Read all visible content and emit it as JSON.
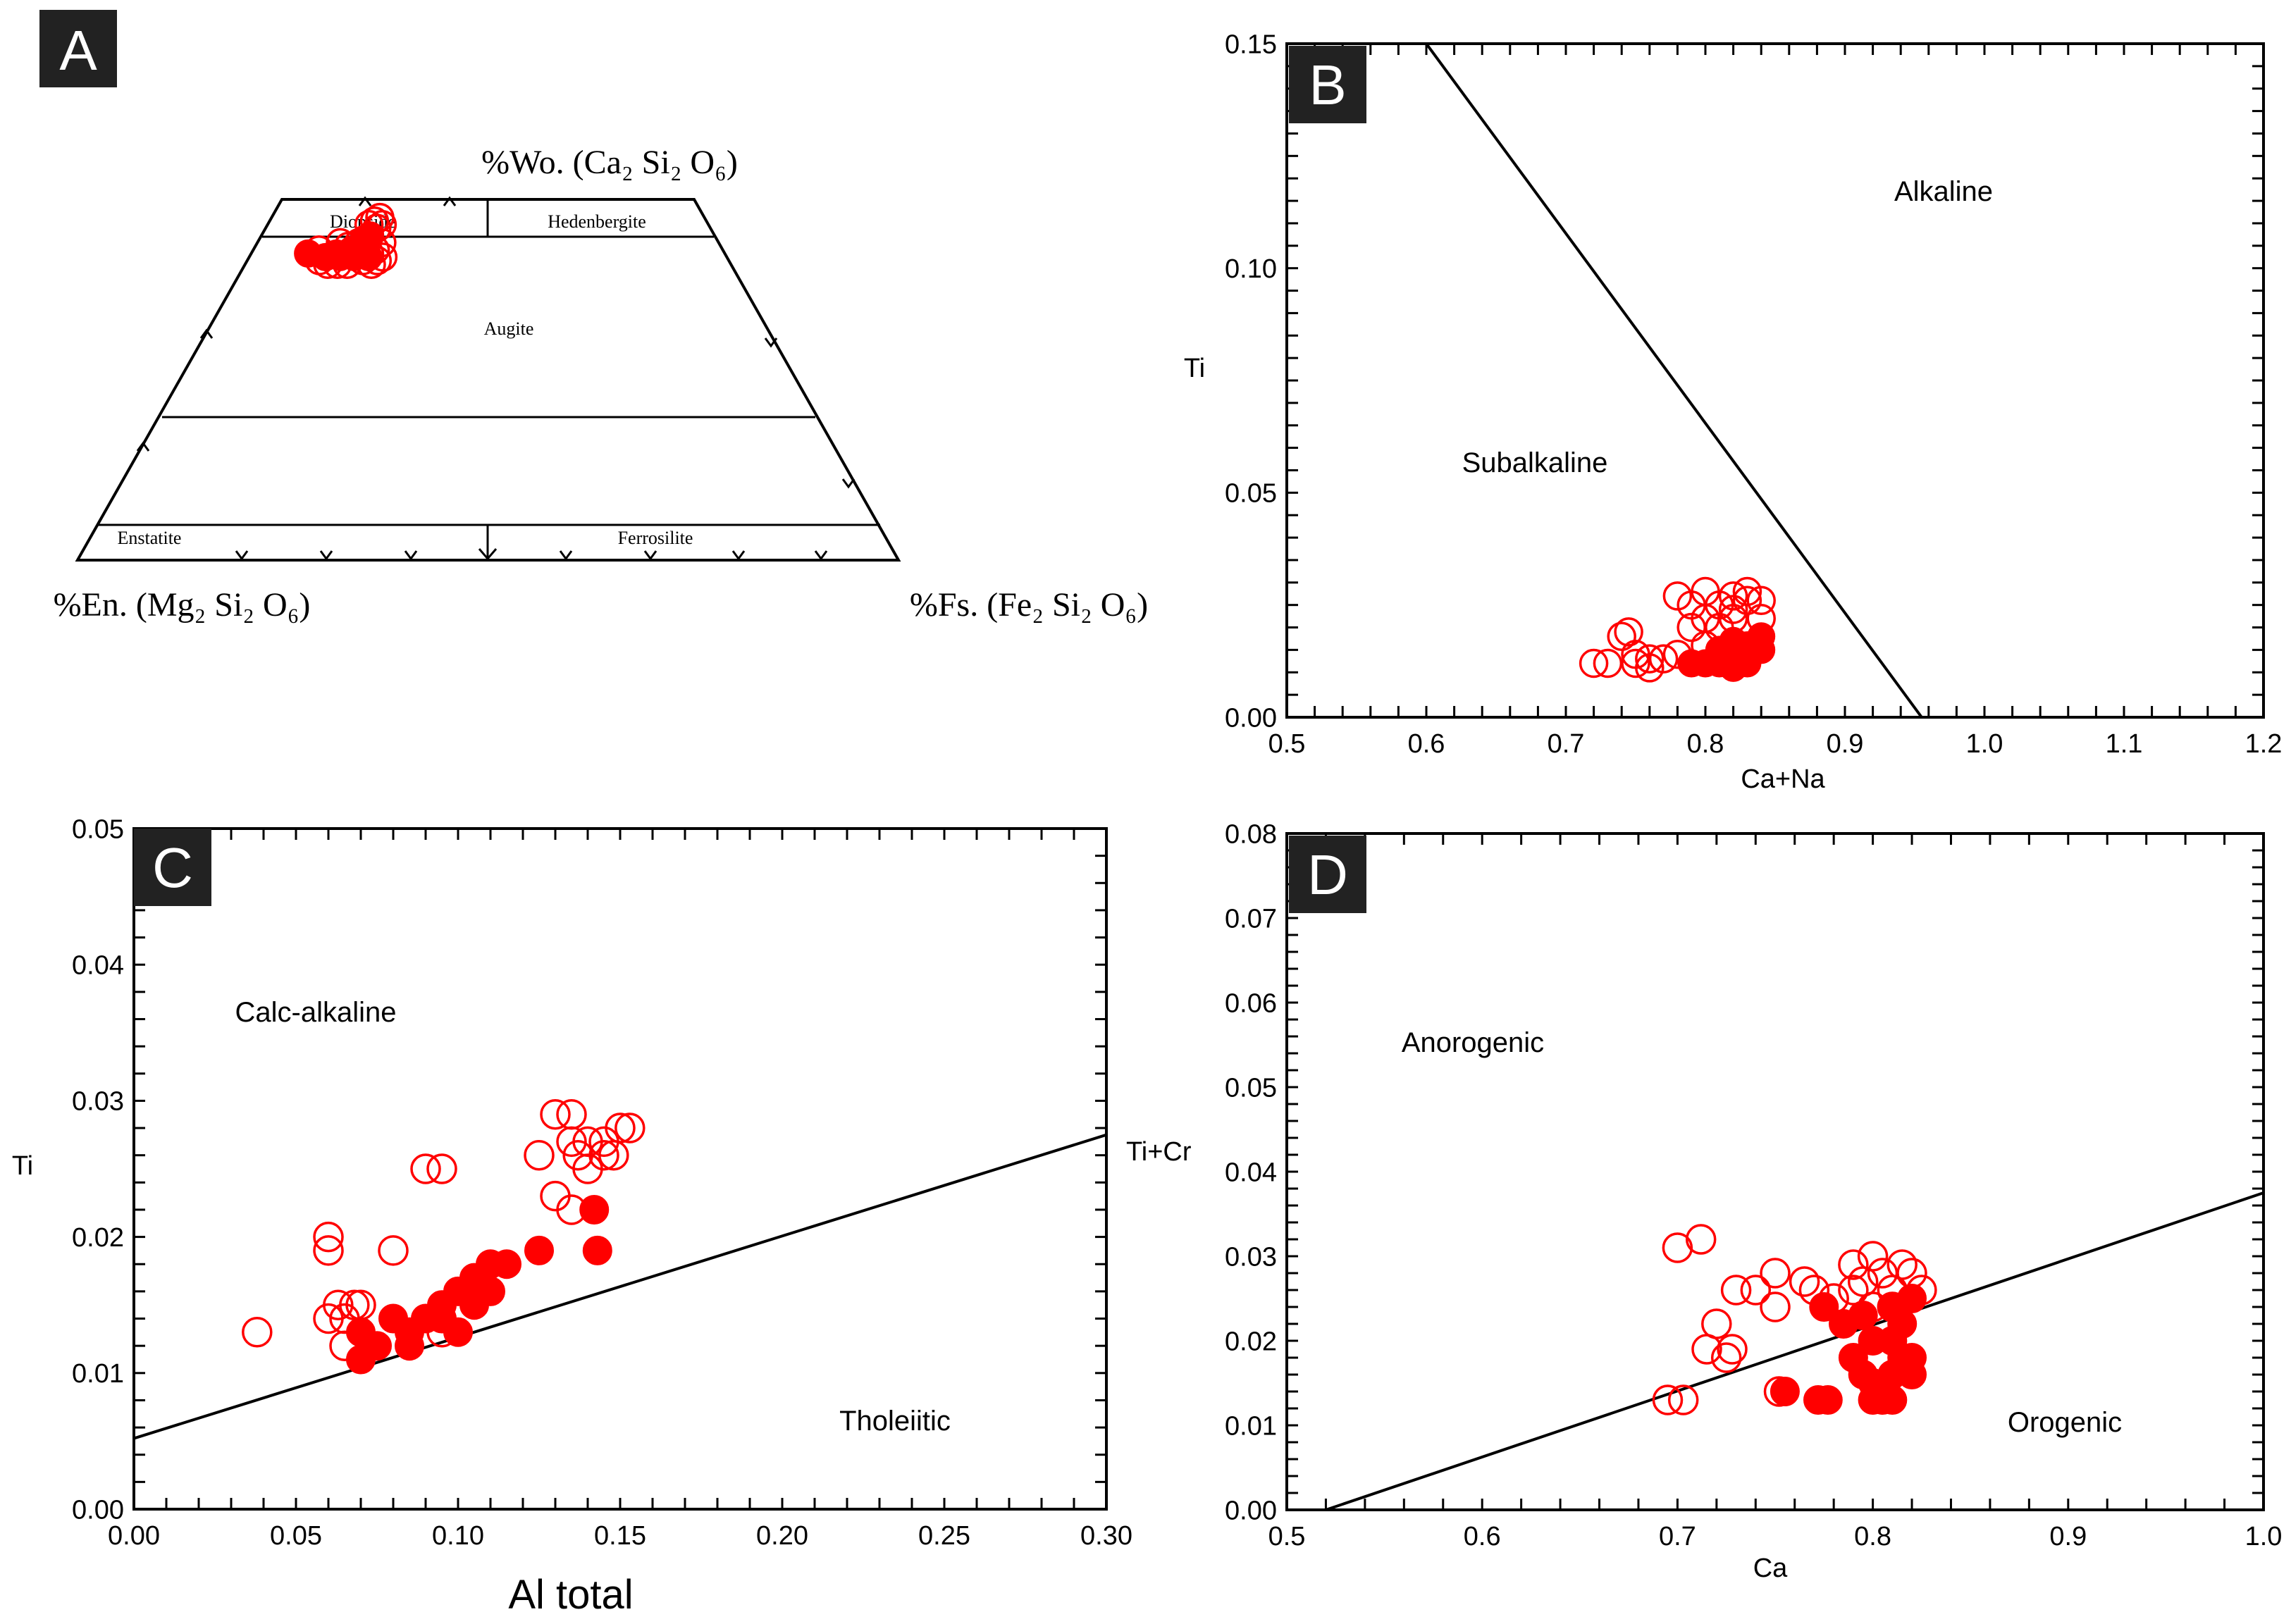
{
  "figure": {
    "marker_color": "#ff0000",
    "line_color": "#000000",
    "panel_label_bg": "#222222"
  },
  "chart_data": [
    {
      "id": "A",
      "type": "scatter",
      "title": "A",
      "diagram": "pyroxene quadrilateral (Wo-En-Fs)",
      "apex_labels": {
        "top": "%Wo. (Ca₂ Si₂ O₆)",
        "bottom_left": "%En. (Mg₂ Si₂ O₆)",
        "bottom_right": "%Fs. (Fe₂ Si₂ O₆)"
      },
      "fields": [
        "Diopside",
        "Hedenbergite",
        "Augite",
        "Enstatite",
        "Ferrosilite"
      ],
      "axes": {
        "x": "Fs fraction of En+Fs (0-100)",
        "y": "Wo (0-50)"
      },
      "filled": [
        [
          12,
          42.5
        ],
        [
          16,
          42
        ],
        [
          18,
          42.5
        ],
        [
          21,
          43
        ],
        [
          23,
          44.5
        ],
        [
          24,
          45
        ],
        [
          22,
          42
        ],
        [
          19,
          42
        ],
        [
          25,
          42
        ]
      ],
      "open": [
        [
          14,
          43
        ],
        [
          15,
          41.5
        ],
        [
          17,
          41
        ],
        [
          19,
          41
        ],
        [
          21,
          41
        ],
        [
          22,
          44
        ],
        [
          23,
          46.5
        ],
        [
          24,
          47
        ],
        [
          25,
          46
        ],
        [
          25,
          47.5
        ],
        [
          26,
          46.5
        ],
        [
          23,
          43
        ],
        [
          25,
          42.5
        ],
        [
          26,
          43
        ],
        [
          27,
          44
        ],
        [
          24,
          41.5
        ],
        [
          26,
          41
        ],
        [
          27,
          41.5
        ],
        [
          20,
          43.5
        ],
        [
          28,
          42
        ],
        [
          18,
          44
        ]
      ]
    },
    {
      "id": "B",
      "type": "scatter",
      "title": "B",
      "xlabel": "Ca+Na",
      "ylabel": "Ti",
      "xlim": [
        0.5,
        1.2
      ],
      "ylim": [
        0.0,
        0.15
      ],
      "xticks": [
        "0.5",
        "0.6",
        "0.7",
        "0.8",
        "0.9",
        "1.0",
        "1.1",
        "1.2"
      ],
      "yticks": [
        "0.00",
        "0.05",
        "0.10",
        "0.15"
      ],
      "fields": [
        "Subalkaline",
        "Alkaline"
      ],
      "boundary": [
        [
          0.6,
          0.15
        ],
        [
          0.955,
          0.0
        ]
      ],
      "filled": [
        [
          0.79,
          0.012
        ],
        [
          0.8,
          0.012
        ],
        [
          0.81,
          0.012
        ],
        [
          0.82,
          0.011
        ],
        [
          0.83,
          0.013
        ],
        [
          0.84,
          0.015
        ],
        [
          0.84,
          0.018
        ],
        [
          0.83,
          0.016
        ],
        [
          0.82,
          0.017
        ],
        [
          0.81,
          0.015
        ],
        [
          0.83,
          0.012
        ],
        [
          0.82,
          0.014
        ]
      ],
      "open": [
        [
          0.72,
          0.012
        ],
        [
          0.73,
          0.012
        ],
        [
          0.74,
          0.018
        ],
        [
          0.745,
          0.019
        ],
        [
          0.75,
          0.012
        ],
        [
          0.76,
          0.013
        ],
        [
          0.77,
          0.013
        ],
        [
          0.78,
          0.014
        ],
        [
          0.78,
          0.027
        ],
        [
          0.79,
          0.025
        ],
        [
          0.8,
          0.022
        ],
        [
          0.8,
          0.028
        ],
        [
          0.81,
          0.025
        ],
        [
          0.82,
          0.027
        ],
        [
          0.82,
          0.024
        ],
        [
          0.83,
          0.028
        ],
        [
          0.83,
          0.026
        ],
        [
          0.84,
          0.026
        ],
        [
          0.81,
          0.02
        ],
        [
          0.75,
          0.014
        ],
        [
          0.76,
          0.011
        ],
        [
          0.79,
          0.02
        ],
        [
          0.82,
          0.022
        ],
        [
          0.84,
          0.022
        ],
        [
          0.8,
          0.016
        ]
      ]
    },
    {
      "id": "C",
      "type": "scatter",
      "title": "C",
      "xlabel": "Al total",
      "ylabel": "Ti",
      "xlim": [
        0.0,
        0.3
      ],
      "ylim": [
        0.0,
        0.05
      ],
      "xticks": [
        "0.00",
        "0.05",
        "0.10",
        "0.15",
        "0.20",
        "0.25",
        "0.30"
      ],
      "yticks": [
        "0.00",
        "0.01",
        "0.02",
        "0.03",
        "0.04",
        "0.05"
      ],
      "fields": [
        "Calc-alkaline",
        "Tholeiitic"
      ],
      "line_label": "Ti+Cr",
      "boundary": [
        [
          0.0,
          0.0052
        ],
        [
          0.3,
          0.0275
        ]
      ],
      "filled": [
        [
          0.07,
          0.011
        ],
        [
          0.07,
          0.013
        ],
        [
          0.075,
          0.012
        ],
        [
          0.08,
          0.014
        ],
        [
          0.085,
          0.013
        ],
        [
          0.085,
          0.012
        ],
        [
          0.09,
          0.014
        ],
        [
          0.095,
          0.014
        ],
        [
          0.1,
          0.016
        ],
        [
          0.105,
          0.017
        ],
        [
          0.105,
          0.015
        ],
        [
          0.11,
          0.016
        ],
        [
          0.11,
          0.018
        ],
        [
          0.115,
          0.018
        ],
        [
          0.125,
          0.019
        ],
        [
          0.142,
          0.022
        ],
        [
          0.143,
          0.019
        ],
        [
          0.1,
          0.013
        ],
        [
          0.095,
          0.015
        ]
      ],
      "open": [
        [
          0.038,
          0.013
        ],
        [
          0.06,
          0.02
        ],
        [
          0.06,
          0.019
        ],
        [
          0.06,
          0.014
        ],
        [
          0.063,
          0.015
        ],
        [
          0.065,
          0.014
        ],
        [
          0.068,
          0.015
        ],
        [
          0.07,
          0.015
        ],
        [
          0.065,
          0.012
        ],
        [
          0.08,
          0.019
        ],
        [
          0.09,
          0.025
        ],
        [
          0.095,
          0.025
        ],
        [
          0.125,
          0.026
        ],
        [
          0.13,
          0.029
        ],
        [
          0.135,
          0.029
        ],
        [
          0.135,
          0.027
        ],
        [
          0.14,
          0.027
        ],
        [
          0.14,
          0.025
        ],
        [
          0.145,
          0.027
        ],
        [
          0.148,
          0.026
        ],
        [
          0.15,
          0.028
        ],
        [
          0.153,
          0.028
        ],
        [
          0.137,
          0.026
        ],
        [
          0.145,
          0.026
        ],
        [
          0.13,
          0.023
        ],
        [
          0.135,
          0.022
        ],
        [
          0.095,
          0.013
        ]
      ]
    },
    {
      "id": "D",
      "type": "scatter",
      "title": "D",
      "xlabel": "Ca",
      "ylabel": "",
      "xlim": [
        0.5,
        1.0
      ],
      "ylim": [
        0.0,
        0.08
      ],
      "xticks": [
        "0.5",
        "0.6",
        "0.7",
        "0.8",
        "0.9",
        "1.0"
      ],
      "yticks": [
        "0.00",
        "0.01",
        "0.02",
        "0.03",
        "0.04",
        "0.05",
        "0.06",
        "0.07",
        "0.08"
      ],
      "fields": [
        "Anorogenic",
        "Orogenic"
      ],
      "boundary": [
        [
          0.52,
          0.0
        ],
        [
          1.0,
          0.0375
        ]
      ],
      "filled": [
        [
          0.755,
          0.014
        ],
        [
          0.772,
          0.013
        ],
        [
          0.777,
          0.013
        ],
        [
          0.775,
          0.024
        ],
        [
          0.785,
          0.022
        ],
        [
          0.795,
          0.023
        ],
        [
          0.79,
          0.018
        ],
        [
          0.8,
          0.02
        ],
        [
          0.8,
          0.013
        ],
        [
          0.805,
          0.013
        ],
        [
          0.81,
          0.016
        ],
        [
          0.81,
          0.013
        ],
        [
          0.815,
          0.018
        ],
        [
          0.815,
          0.022
        ],
        [
          0.82,
          0.016
        ],
        [
          0.82,
          0.018
        ],
        [
          0.82,
          0.025
        ],
        [
          0.81,
          0.02
        ],
        [
          0.795,
          0.016
        ],
        [
          0.8,
          0.015
        ],
        [
          0.81,
          0.024
        ]
      ],
      "open": [
        [
          0.695,
          0.013
        ],
        [
          0.7,
          0.031
        ],
        [
          0.703,
          0.013
        ],
        [
          0.712,
          0.032
        ],
        [
          0.715,
          0.019
        ],
        [
          0.72,
          0.022
        ],
        [
          0.725,
          0.018
        ],
        [
          0.728,
          0.019
        ],
        [
          0.73,
          0.026
        ],
        [
          0.74,
          0.026
        ],
        [
          0.75,
          0.028
        ],
        [
          0.75,
          0.024
        ],
        [
          0.752,
          0.014
        ],
        [
          0.765,
          0.027
        ],
        [
          0.77,
          0.026
        ],
        [
          0.78,
          0.025
        ],
        [
          0.79,
          0.029
        ],
        [
          0.8,
          0.03
        ],
        [
          0.795,
          0.027
        ],
        [
          0.805,
          0.028
        ],
        [
          0.81,
          0.026
        ],
        [
          0.815,
          0.029
        ],
        [
          0.82,
          0.028
        ],
        [
          0.825,
          0.026
        ],
        [
          0.8,
          0.024
        ],
        [
          0.79,
          0.026
        ],
        [
          0.81,
          0.024
        ]
      ]
    }
  ]
}
